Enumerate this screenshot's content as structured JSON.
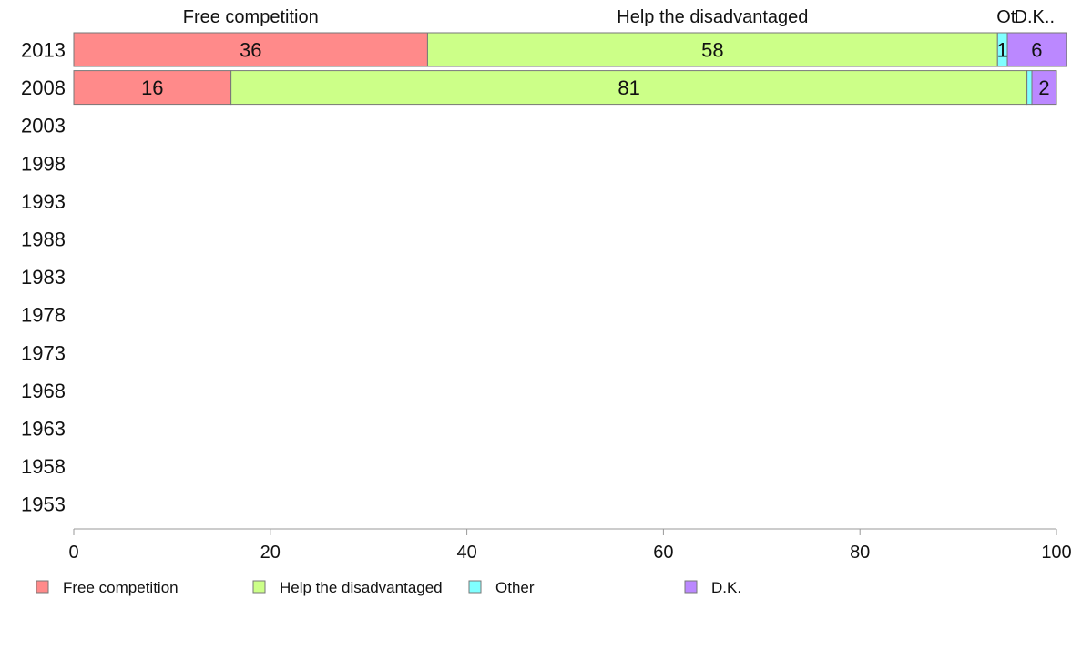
{
  "chart_data": {
    "type": "bar",
    "orientation": "horizontal",
    "stacked": true,
    "categories": [
      "2013",
      "2008",
      "2003",
      "1998",
      "1993",
      "1988",
      "1983",
      "1978",
      "1973",
      "1968",
      "1963",
      "1958",
      "1953"
    ],
    "series": [
      {
        "name": "Free competition",
        "color": "#ff8a8a",
        "values": [
          36,
          16,
          null,
          null,
          null,
          null,
          null,
          null,
          null,
          null,
          null,
          null,
          null
        ],
        "labels": [
          "36",
          "16",
          "",
          "",
          "",
          "",
          "",
          "",
          "",
          "",
          "",
          "",
          ""
        ]
      },
      {
        "name": "Help the disadvantaged",
        "color": "#ccff88",
        "values": [
          58,
          81,
          null,
          null,
          null,
          null,
          null,
          null,
          null,
          null,
          null,
          null,
          null
        ],
        "labels": [
          "58",
          "81",
          "",
          "",
          "",
          "",
          "",
          "",
          "",
          "",
          "",
          "",
          ""
        ]
      },
      {
        "name": "Other",
        "color": "#80ffff",
        "values": [
          1,
          0.5,
          null,
          null,
          null,
          null,
          null,
          null,
          null,
          null,
          null,
          null,
          null
        ],
        "labels": [
          "1",
          "",
          "",
          "",
          "",
          "",
          "",
          "",
          "",
          "",
          "",
          "",
          ""
        ]
      },
      {
        "name": "D.K.",
        "color": "#bb88ff",
        "values": [
          6,
          2.5,
          null,
          null,
          null,
          null,
          null,
          null,
          null,
          null,
          null,
          null,
          null
        ],
        "labels": [
          "6",
          "2",
          "",
          "",
          "",
          "",
          "",
          "",
          "",
          "",
          "",
          "",
          ""
        ]
      }
    ],
    "top_labels": [
      "Free competition",
      "Help the disadvantaged",
      "Ot",
      "D.K.."
    ],
    "xlim": [
      0,
      100
    ],
    "xticks": [
      0,
      20,
      40,
      60,
      80,
      100
    ],
    "grid": false,
    "legend": "bottom",
    "title": "",
    "xlabel": "",
    "ylabel": ""
  }
}
